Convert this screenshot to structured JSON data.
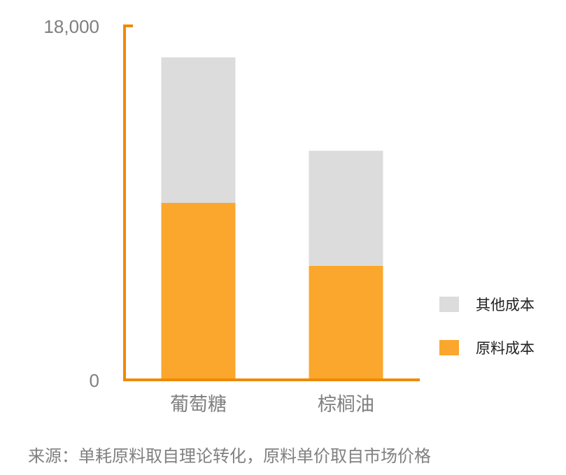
{
  "chart_data": {
    "type": "bar",
    "stacked": true,
    "categories": [
      "葡萄糖",
      "棕榈油"
    ],
    "series": [
      {
        "name": "原料成本",
        "values": [
          9000,
          5800
        ],
        "color": "#FBA72D"
      },
      {
        "name": "其他成本",
        "values": [
          7400,
          5850
        ],
        "color": "#DCDCDC"
      }
    ],
    "ylim": [
      0,
      18000
    ],
    "y_ticks": [
      "0",
      "18,000"
    ],
    "axis_color": "#EF8A00",
    "grid": false,
    "legend_position": "right",
    "legend_order": [
      "其他成本",
      "原料成本"
    ]
  },
  "source": "来源：单耗原料取自理论转化，原料单价取自市场价格"
}
